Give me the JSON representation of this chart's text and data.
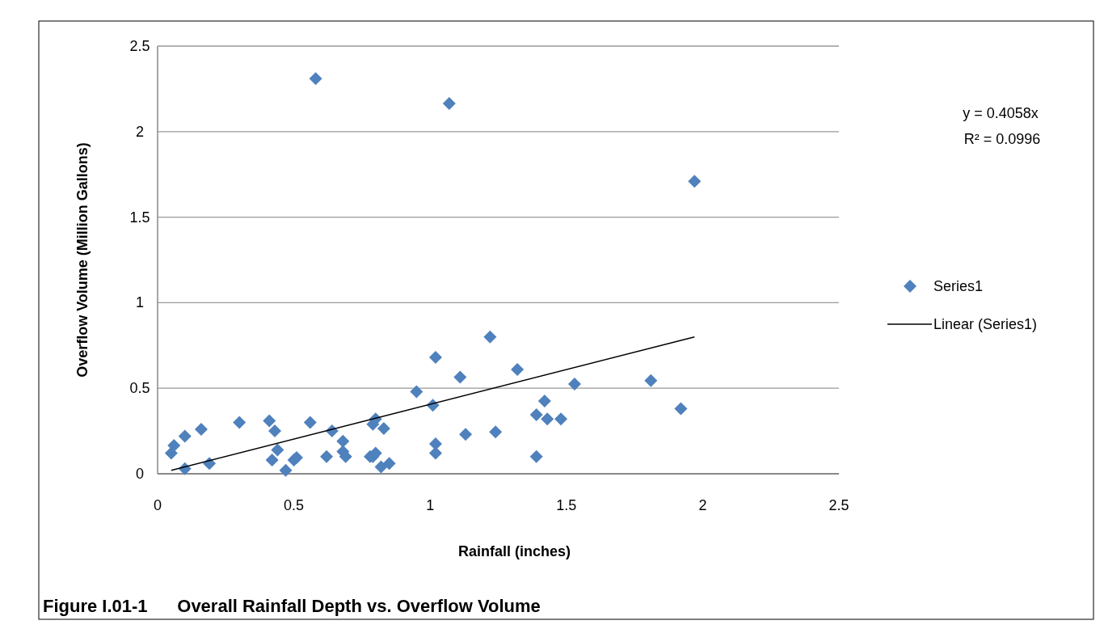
{
  "chart_data": {
    "type": "scatter",
    "xlabel": "Rainfall (inches)",
    "ylabel": "Overflow Volume (Million Gallons)",
    "xlim": [
      0,
      2.5
    ],
    "xticks": [
      0,
      0.5,
      1,
      1.5,
      2,
      2.5
    ],
    "ylim": [
      0,
      2.5
    ],
    "yticks": [
      0,
      0.5,
      1,
      1.5,
      2,
      2.5
    ],
    "grid": "y",
    "legend": "right",
    "annotations": [
      "y = 0.4058x",
      "R² = 0.0996",
      "Figure I.01-1      Overall Rainfall Depth vs. Overflow Volume"
    ],
    "series": [
      {
        "name": "Series1",
        "marker": "diamond",
        "color": "#4f81bd",
        "x": [
          0.05,
          0.06,
          0.1,
          0.1,
          0.16,
          0.19,
          0.3,
          0.41,
          0.43,
          0.42,
          0.44,
          0.47,
          0.5,
          0.51,
          0.56,
          0.62,
          0.64,
          0.68,
          0.68,
          0.69,
          0.78,
          0.79,
          0.8,
          0.83,
          0.79,
          0.8,
          0.82,
          0.85,
          0.95,
          1.01,
          1.02,
          1.02,
          1.02,
          1.11,
          1.13,
          1.22,
          1.24,
          1.32,
          1.39,
          1.39,
          1.42,
          1.43,
          1.48,
          1.53,
          1.81,
          1.92,
          0.58,
          1.07,
          1.97
        ],
        "values": [
          0.12,
          0.165,
          0.22,
          0.03,
          0.26,
          0.06,
          0.3,
          0.31,
          0.25,
          0.08,
          0.14,
          0.02,
          0.08,
          0.095,
          0.3,
          0.1,
          0.25,
          0.19,
          0.13,
          0.1,
          0.1,
          0.29,
          0.32,
          0.265,
          0.1,
          0.12,
          0.04,
          0.06,
          0.48,
          0.4,
          0.68,
          0.175,
          0.12,
          0.565,
          0.23,
          0.8,
          0.245,
          0.61,
          0.345,
          0.1,
          0.425,
          0.32,
          0.32,
          0.525,
          0.545,
          0.38,
          2.31,
          2.165,
          1.71
        ]
      },
      {
        "name": "Linear (Series1)",
        "type": "line",
        "marker": "none",
        "color": "#000000",
        "line_style": "solid",
        "x": [
          0.05,
          1.97
        ],
        "values": [
          0.02,
          0.8
        ]
      }
    ]
  }
}
